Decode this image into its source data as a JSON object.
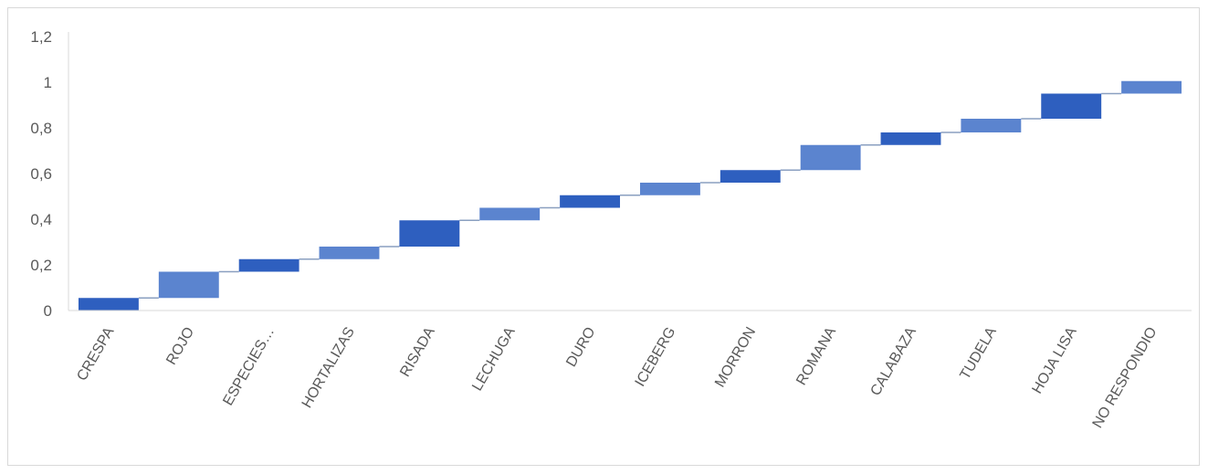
{
  "chart_data": {
    "type": "bar",
    "subtype": "waterfall",
    "title": "",
    "xlabel": "",
    "ylabel": "",
    "ylim": [
      0,
      1.2
    ],
    "yticks": [
      "0",
      "0,2",
      "0,4",
      "0,6",
      "0,8",
      "1",
      "1,2"
    ],
    "grid": false,
    "legend": "none",
    "categories": [
      "CRESPA",
      "ROJO",
      "ESPECIES…",
      "HORTALIZAS",
      "RISADA",
      "LECHUGA",
      "DURO",
      "ICEBERG",
      "MORRON",
      "ROMANA",
      "CALABAZA",
      "TUDELA",
      "HOJA LISA",
      "NO RESPONDIO"
    ],
    "values": [
      0.055,
      0.115,
      0.055,
      0.055,
      0.115,
      0.055,
      0.055,
      0.055,
      0.055,
      0.11,
      0.055,
      0.06,
      0.11,
      0.055
    ],
    "cumulative_end": [
      0.055,
      0.17,
      0.225,
      0.28,
      0.395,
      0.45,
      0.505,
      0.56,
      0.615,
      0.725,
      0.78,
      0.84,
      0.95,
      1.005
    ],
    "colors": {
      "bar_dark": "#2e5fbf",
      "bar_light": "#5b84cf",
      "connector": "#8a9fc0",
      "axis": "#d9d9d9",
      "text": "#595959"
    }
  }
}
